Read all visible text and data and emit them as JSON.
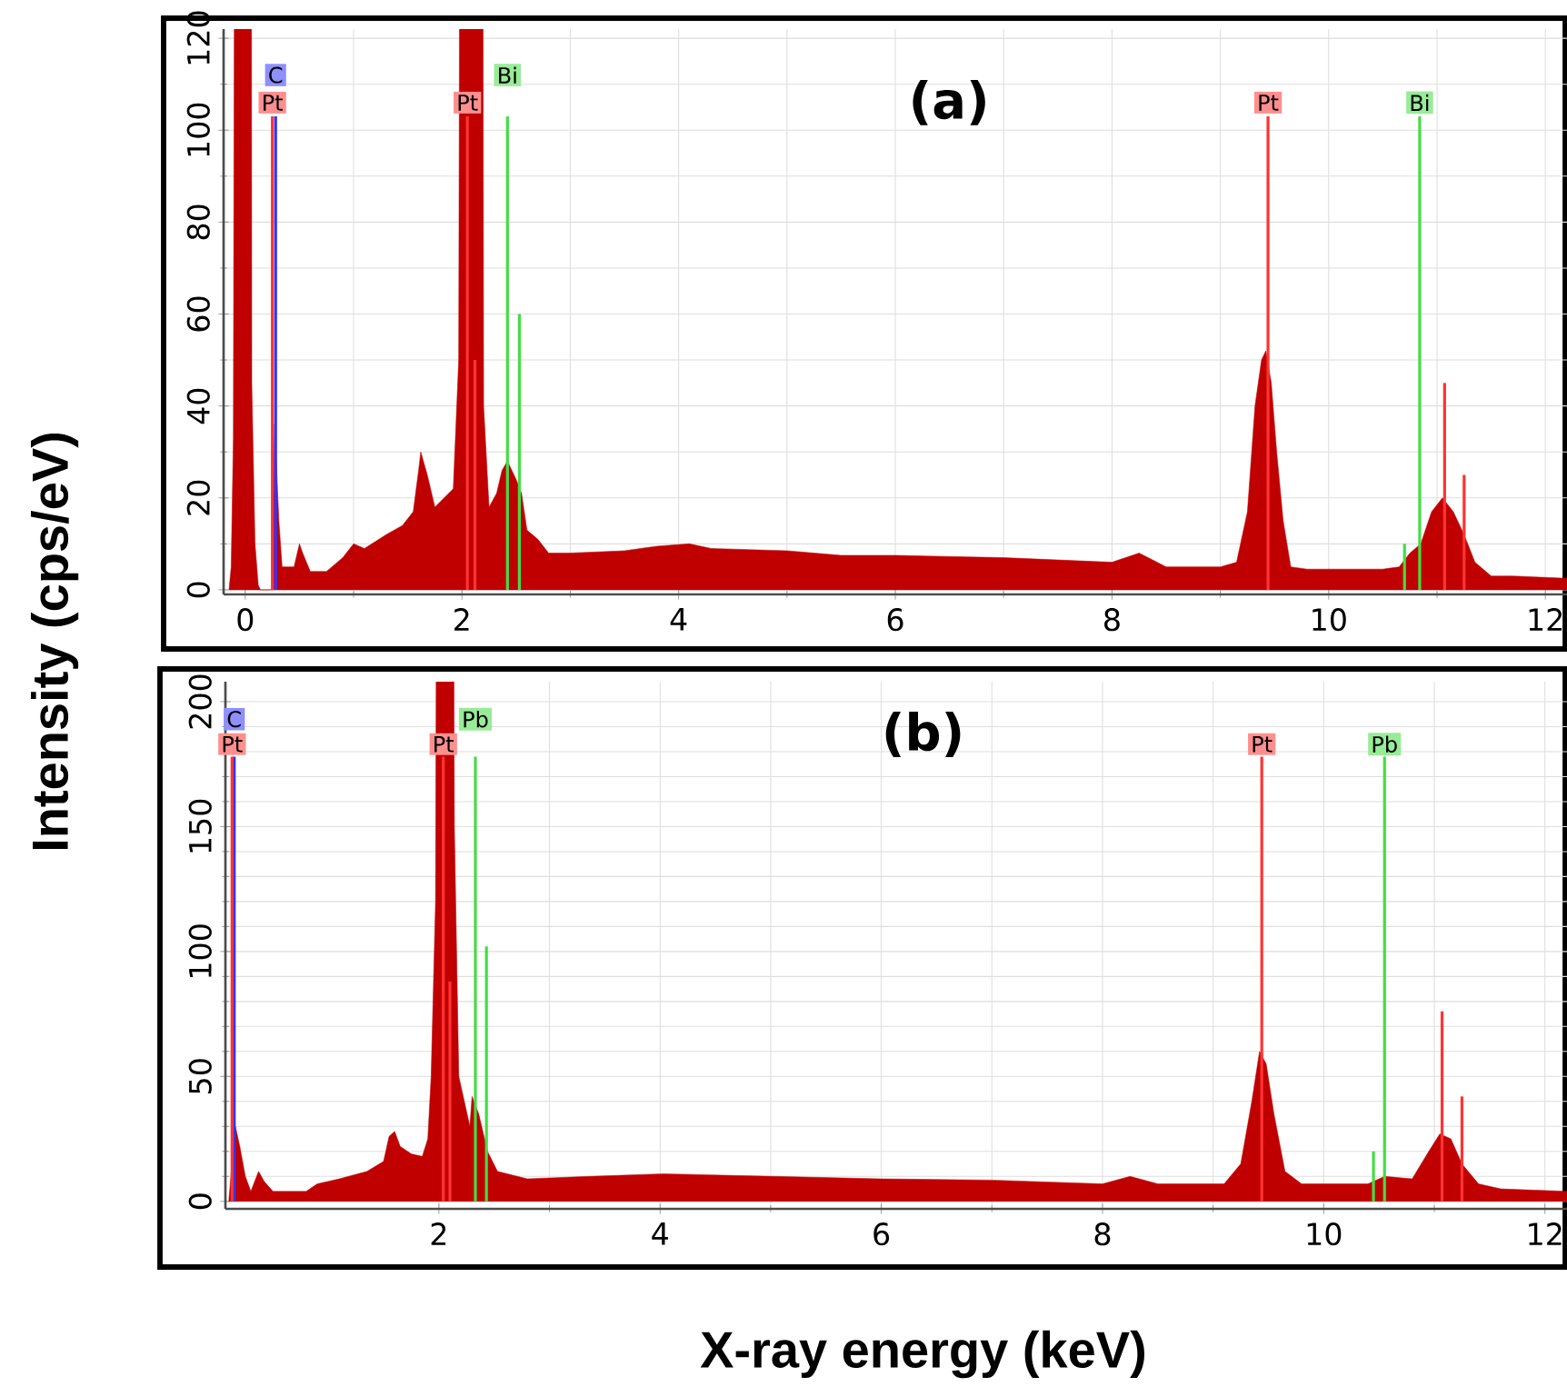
{
  "chart_data": [
    {
      "type": "area",
      "title": "(a)",
      "ylabel": "Intensity (cps/eV)",
      "xlim": [
        -0.2,
        12.2
      ],
      "xticks": [
        0,
        2,
        4,
        6,
        8,
        10,
        12
      ],
      "ylim": [
        -1,
        122
      ],
      "yticks": [
        0,
        20,
        40,
        60,
        80,
        100,
        120
      ],
      "grid": true,
      "series": [
        {
          "color": "#c00000",
          "x": [
            -0.15,
            -0.13,
            -0.11,
            -0.08,
            0.05,
            0.06,
            0.09,
            0.12,
            0.14,
            0.25,
            0.27,
            0.29,
            0.31,
            0.34,
            0.45,
            0.5,
            0.53,
            0.6,
            0.75,
            0.9,
            1.0,
            1.1,
            1.3,
            1.45,
            1.55,
            1.6,
            1.62,
            1.68,
            1.75,
            1.92,
            1.97,
            2.0,
            2.18,
            2.2,
            2.25,
            2.32,
            2.37,
            2.42,
            2.5,
            2.55,
            2.6,
            2.7,
            2.8,
            3.0,
            3.5,
            3.8,
            4.1,
            4.3,
            5.0,
            5.5,
            6.0,
            7.0,
            7.5,
            8.0,
            8.25,
            8.5,
            9.0,
            9.15,
            9.25,
            9.32,
            9.38,
            9.42,
            9.47,
            9.52,
            9.58,
            9.65,
            9.8,
            10.5,
            10.65,
            10.75,
            10.85,
            10.95,
            11.05,
            11.15,
            11.25,
            11.35,
            11.5,
            11.7,
            12.2
          ],
          "values": [
            0,
            5,
            33,
            null,
            null,
            45,
            10,
            1,
            0,
            0,
            36,
            26,
            15,
            5,
            5,
            10,
            8,
            4,
            4,
            7,
            10,
            9,
            12,
            14,
            17,
            26,
            30,
            25,
            18,
            22,
            50,
            null,
            null,
            40,
            18,
            21,
            26,
            28,
            24,
            21,
            13,
            11,
            8,
            8,
            8.5,
            9.5,
            10,
            9,
            8.5,
            7.5,
            7.5,
            7,
            6.5,
            6,
            8,
            5,
            5,
            6,
            17,
            40,
            50,
            52,
            45,
            30,
            15,
            5,
            4.5,
            4.5,
            5,
            8,
            10,
            17,
            20,
            17,
            12,
            6,
            3,
            3,
            2.5
          ]
        },
        {
          "type": "bar",
          "color": "#3333ff",
          "x": [
            0.28
          ],
          "values": [
            103
          ]
        },
        {
          "type": "bar",
          "color": "#ff3333",
          "x": [
            0.25,
            2.05,
            2.12,
            9.44,
            11.07,
            11.25
          ],
          "values": [
            103,
            103,
            50,
            103,
            45,
            25
          ]
        },
        {
          "type": "bar",
          "color": "#44dd44",
          "x": [
            2.42,
            2.53,
            10.7,
            10.84
          ],
          "values": [
            103,
            60,
            10,
            103
          ]
        }
      ],
      "annotations": [
        {
          "text": "C",
          "x": 0.28,
          "y": 112
        },
        {
          "text": "Pt",
          "x": 0.25,
          "y": 106
        },
        {
          "text": "Pt",
          "x": 2.05,
          "y": 106
        },
        {
          "text": "Bi",
          "x": 2.42,
          "y": 112
        },
        {
          "text": "Pt",
          "x": 9.44,
          "y": 106
        },
        {
          "text": "Bi",
          "x": 10.84,
          "y": 106
        }
      ]
    },
    {
      "type": "area",
      "title": "(b)",
      "xlabel": "X-ray energy (keV)",
      "xlim": [
        0.07,
        12.2
      ],
      "xticks": [
        2,
        4,
        6,
        8,
        10,
        12
      ],
      "ylim": [
        -3,
        208
      ],
      "yticks": [
        0,
        50,
        100,
        150,
        200
      ],
      "grid": true,
      "series": [
        {
          "color": "#c00000",
          "x": [
            0.1,
            0.16,
            0.2,
            0.25,
            0.3,
            0.37,
            0.42,
            0.5,
            0.8,
            0.9,
            1.1,
            1.35,
            1.5,
            1.55,
            1.6,
            1.65,
            1.75,
            1.85,
            1.9,
            1.93,
            1.97,
            2.0,
            2.11,
            2.14,
            2.18,
            2.28,
            2.3,
            2.36,
            2.44,
            2.53,
            2.8,
            3.36,
            4.03,
            5.03,
            6.0,
            7.0,
            8.0,
            8.25,
            8.5,
            9.1,
            9.25,
            9.35,
            9.42,
            9.48,
            9.55,
            9.65,
            9.8,
            10.4,
            10.55,
            10.8,
            10.95,
            11.05,
            11.15,
            11.25,
            11.4,
            11.6,
            12.2
          ],
          "values": [
            0,
            30,
            22,
            10,
            4,
            12,
            8,
            4,
            4,
            7,
            9,
            12,
            16,
            26,
            28,
            22,
            19,
            18,
            25,
            50,
            120,
            null,
            null,
            150,
            50,
            30,
            42,
            35,
            20,
            12,
            9,
            10,
            11,
            10,
            9,
            8.5,
            7,
            10,
            7,
            7,
            15,
            40,
            60,
            55,
            35,
            12,
            7,
            7,
            10,
            9,
            20,
            27,
            25,
            15,
            7,
            5,
            4
          ]
        },
        {
          "type": "bar",
          "color": "#3333ff",
          "x": [
            0.15
          ],
          "values": [
            178
          ]
        },
        {
          "type": "bar",
          "color": "#ff3333",
          "x": [
            0.13,
            2.04,
            2.1,
            9.44,
            11.07,
            11.25
          ],
          "values": [
            178,
            178,
            88,
            178,
            76,
            42
          ]
        },
        {
          "type": "bar",
          "color": "#44dd44",
          "x": [
            2.33,
            2.43,
            10.45,
            10.55
          ],
          "values": [
            178,
            102,
            20,
            178
          ]
        }
      ],
      "annotations": [
        {
          "text": "C",
          "x": 0.15,
          "y": 193
        },
        {
          "text": "Pt",
          "x": 0.13,
          "y": 183
        },
        {
          "text": "Pt",
          "x": 2.04,
          "y": 183
        },
        {
          "text": "Pb",
          "x": 2.33,
          "y": 193
        },
        {
          "text": "Pt",
          "x": 9.44,
          "y": 183
        },
        {
          "text": "Pb",
          "x": 10.55,
          "y": 183
        }
      ]
    }
  ]
}
